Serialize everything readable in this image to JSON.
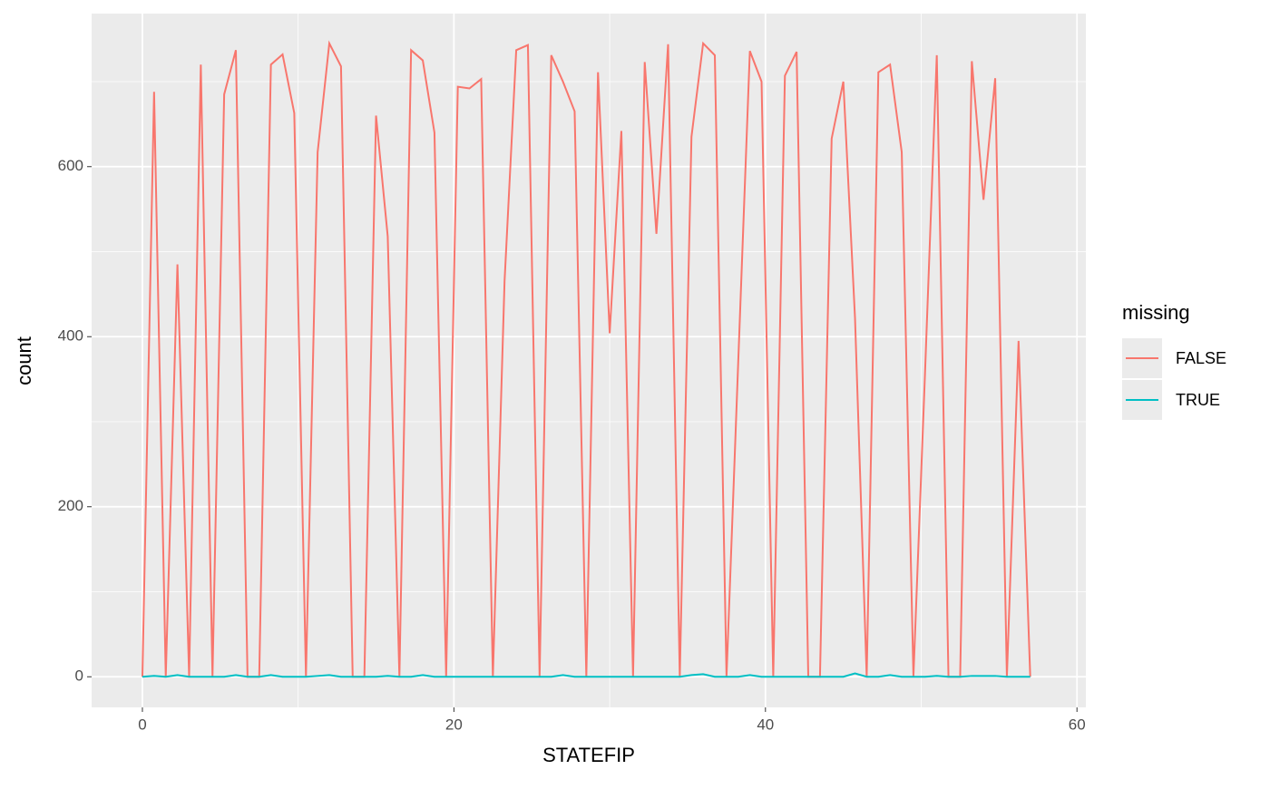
{
  "chart_data": {
    "type": "line",
    "x_label": "STATEFIP",
    "y_label": "count",
    "x": [
      0,
      0.75,
      1.5,
      2.25,
      3,
      3.75,
      4.5,
      5.25,
      6,
      6.75,
      7.5,
      8.25,
      9,
      9.75,
      10.5,
      11.25,
      12,
      12.75,
      13.5,
      14.25,
      15,
      15.75,
      16.5,
      17.25,
      18,
      18.75,
      19.5,
      20.25,
      21,
      21.75,
      22.5,
      23.25,
      24,
      24.75,
      25.5,
      26.25,
      27,
      27.75,
      28.5,
      29.25,
      30,
      30.75,
      31.5,
      32.25,
      33,
      33.75,
      34.5,
      35.25,
      36,
      36.75,
      37.5,
      38.25,
      39,
      39.75,
      40.5,
      41.25,
      42,
      42.75,
      43.5,
      44.25,
      45,
      45.75,
      46.5,
      47.25,
      48,
      48.75,
      49.5,
      50.25,
      51,
      51.75,
      52.5,
      53.25,
      54,
      54.75,
      55.5,
      56.25,
      57
    ],
    "series": [
      {
        "name": "FALSE",
        "color": "#f8766d",
        "values": [
          0,
          688,
          0,
          485,
          0,
          720,
          0,
          685,
          737,
          0,
          0,
          720,
          732,
          663,
          0,
          617,
          745,
          718,
          0,
          0,
          660,
          518,
          0,
          737,
          725,
          640,
          0,
          694,
          692,
          703,
          0,
          465,
          737,
          743,
          0,
          731,
          700,
          665,
          0,
          711,
          404,
          642,
          0,
          723,
          521,
          744,
          0,
          635,
          745,
          731,
          0,
          369,
          736,
          700,
          0,
          707,
          735,
          0,
          0,
          633,
          700,
          422,
          0,
          711,
          720,
          617,
          0,
          360,
          731,
          0,
          0,
          724,
          561,
          704,
          0,
          395,
          0
        ]
      },
      {
        "name": "TRUE",
        "color": "#00bfc4",
        "values": [
          0,
          1,
          0,
          2,
          0,
          0,
          0,
          0,
          2,
          0,
          0,
          2,
          0,
          0,
          0,
          1,
          2,
          0,
          0,
          0,
          0,
          1,
          0,
          0,
          2,
          0,
          0,
          0,
          0,
          0,
          0,
          0,
          0,
          0,
          0,
          0,
          2,
          0,
          0,
          0,
          0,
          0,
          0,
          0,
          0,
          0,
          0,
          2,
          3,
          0,
          0,
          0,
          2,
          0,
          0,
          0,
          0,
          0,
          0,
          0,
          0,
          4,
          0,
          0,
          2,
          0,
          0,
          0,
          1,
          0,
          0,
          1,
          1,
          1,
          0,
          0,
          0
        ]
      }
    ],
    "legend_title": "missing",
    "xlim": [
      -3.26,
      60.57
    ],
    "xticks": [
      0,
      20,
      40,
      60
    ],
    "ylim": [
      -36,
      780
    ],
    "yticks": [
      0,
      200,
      400,
      600
    ],
    "grid": true,
    "legend_position": "right"
  }
}
